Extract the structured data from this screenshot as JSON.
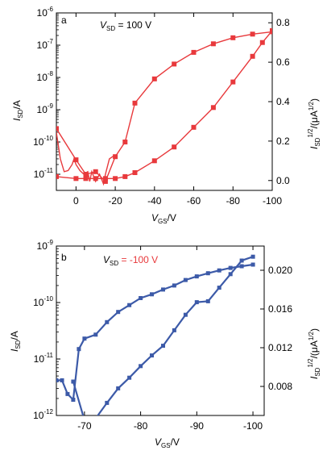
{
  "chart_data": [
    {
      "panel_label": "a",
      "type": "line",
      "annotation": {
        "prefix": "V",
        "sub": "SD",
        "value": " = 100 V"
      },
      "xlabel": {
        "main": "V",
        "sub": "GS",
        "unit": "/V"
      },
      "ylabel_left": {
        "main": "I",
        "sub": "SD",
        "unit": "/A"
      },
      "ylabel_right": {
        "main": "I",
        "sub": "SD",
        "sup": "1/2",
        "unit": "/(μA",
        "unit_sup": "1/2",
        "close": ")"
      },
      "x_range": [
        10,
        -100
      ],
      "x_ticks": [
        0,
        -20,
        -40,
        -60,
        -80,
        -100
      ],
      "x_tick_labels": [
        "0",
        "-20",
        "-40",
        "-60",
        "-80",
        "-100"
      ],
      "y_left_scale": "log",
      "y_left_range_exp": [
        -11.5,
        -6
      ],
      "y_left_tick_exps": [
        -11,
        -10,
        -9,
        -8,
        -7,
        -6
      ],
      "y_left_tick_labels": [
        "10-11",
        "10-10",
        "10-9",
        "10-8",
        "10-7",
        "10-6"
      ],
      "y_right_range": [
        -0.05,
        0.85
      ],
      "y_right_ticks": [
        0.0,
        0.2,
        0.4,
        0.6,
        0.8
      ],
      "y_right_tick_labels": [
        "0.0",
        "0.2",
        "0.4",
        "0.6",
        "0.8"
      ],
      "color": "#e8393c",
      "series": [
        {
          "axis": "left",
          "marker": "none",
          "x": [
            10,
            8,
            6,
            4,
            2,
            1,
            0,
            -2,
            -4,
            -6,
            -7,
            -8,
            -10,
            -12,
            -14,
            -15,
            -17,
            -20
          ],
          "y": [
            2e-10,
            3e-11,
            1.2e-11,
            1.3e-11,
            2e-11,
            3e-11,
            2e-11,
            1.3e-11,
            1e-11,
            1.2e-11,
            6e-12,
            1.2e-11,
            6e-12,
            1e-11,
            5e-12,
            1e-11,
            3e-11,
            4e-11
          ]
        },
        {
          "axis": "left",
          "marker": "square",
          "x": [
            10,
            0,
            -5,
            -10,
            -15,
            -20,
            -25,
            -30,
            -40,
            -50,
            -60,
            -70,
            -80,
            -90,
            -100
          ],
          "y": [
            2.6e-10,
            2.8e-11,
            1e-11,
            1.2e-11,
            6e-12,
            3.5e-11,
            1e-10,
            1.6e-09,
            9e-09,
            2.6e-08,
            6e-08,
            1.1e-07,
            1.7e-07,
            2.2e-07,
            2.6e-07
          ]
        },
        {
          "axis": "right",
          "marker": "square",
          "x": [
            10,
            0,
            -5,
            -10,
            -15,
            -20,
            -25,
            -30,
            -40,
            -50,
            -60,
            -70,
            -80,
            -90,
            -95,
            -100
          ],
          "y": [
            0.02,
            0.01,
            0.01,
            0.01,
            0.01,
            0.01,
            0.02,
            0.04,
            0.1,
            0.17,
            0.27,
            0.37,
            0.5,
            0.63,
            0.7,
            0.76
          ]
        }
      ]
    },
    {
      "panel_label": "b",
      "type": "line",
      "annotation": {
        "prefix": "V",
        "sub": "SD",
        "value": " = -100 V"
      },
      "xlabel": {
        "main": "V",
        "sub": "GS",
        "unit": "/V"
      },
      "ylabel_left": {
        "main": "I",
        "sub": "SD",
        "unit": "/A"
      },
      "ylabel_right": {
        "main": "I",
        "sub": "SD",
        "sup": "1/2",
        "unit": "/(μA",
        "unit_sup": "1/2",
        "close": ")"
      },
      "x_range": [
        -65,
        -102
      ],
      "x_ticks": [
        -70,
        -80,
        -90,
        -100
      ],
      "x_tick_labels": [
        "-70",
        "-80",
        "-90",
        "-100"
      ],
      "y_left_scale": "log",
      "y_left_range_exp": [
        -12,
        -9
      ],
      "y_left_tick_exps": [
        -12,
        -11,
        -10,
        -9
      ],
      "y_left_tick_labels": [
        "10-12",
        "10-11",
        "10-10",
        "10-9"
      ],
      "y_right_range": [
        0.005,
        0.0225
      ],
      "y_right_ticks": [
        0.008,
        0.012,
        0.016,
        0.02
      ],
      "y_right_tick_labels": [
        "0.008",
        "0.012",
        "0.016",
        "0.020"
      ],
      "color": "#3c5aa8",
      "series": [
        {
          "axis": "left",
          "marker": "square",
          "x": [
            -65,
            -66,
            -67,
            -68,
            -69,
            -70,
            -72,
            -74,
            -76,
            -78,
            -80,
            -82,
            -84,
            -86,
            -88,
            -90,
            -92,
            -94,
            -96,
            -98,
            -100
          ],
          "y": [
            4.2e-12,
            4.2e-12,
            2.4e-12,
            1.9e-12,
            1.5e-11,
            2.3e-11,
            2.7e-11,
            4.5e-11,
            6.8e-11,
            9e-11,
            1.2e-10,
            1.4e-10,
            1.7e-10,
            2e-10,
            2.5e-10,
            2.9e-10,
            3.3e-10,
            3.7e-10,
            4.1e-10,
            4.4e-10,
            4.7e-10
          ]
        },
        {
          "axis": "right",
          "marker": "square",
          "x": [
            -68,
            -70,
            -72,
            -74,
            -76,
            -78,
            -80,
            -82,
            -84,
            -86,
            -88,
            -90,
            -92,
            -94,
            -96,
            -98,
            -100
          ],
          "y": [
            0.0085,
            0.0045,
            0.0047,
            0.0063,
            0.0078,
            0.0089,
            0.0101,
            0.0112,
            0.0122,
            0.0138,
            0.0154,
            0.0167,
            0.0168,
            0.0182,
            0.0196,
            0.021,
            0.0214
          ]
        }
      ]
    }
  ]
}
